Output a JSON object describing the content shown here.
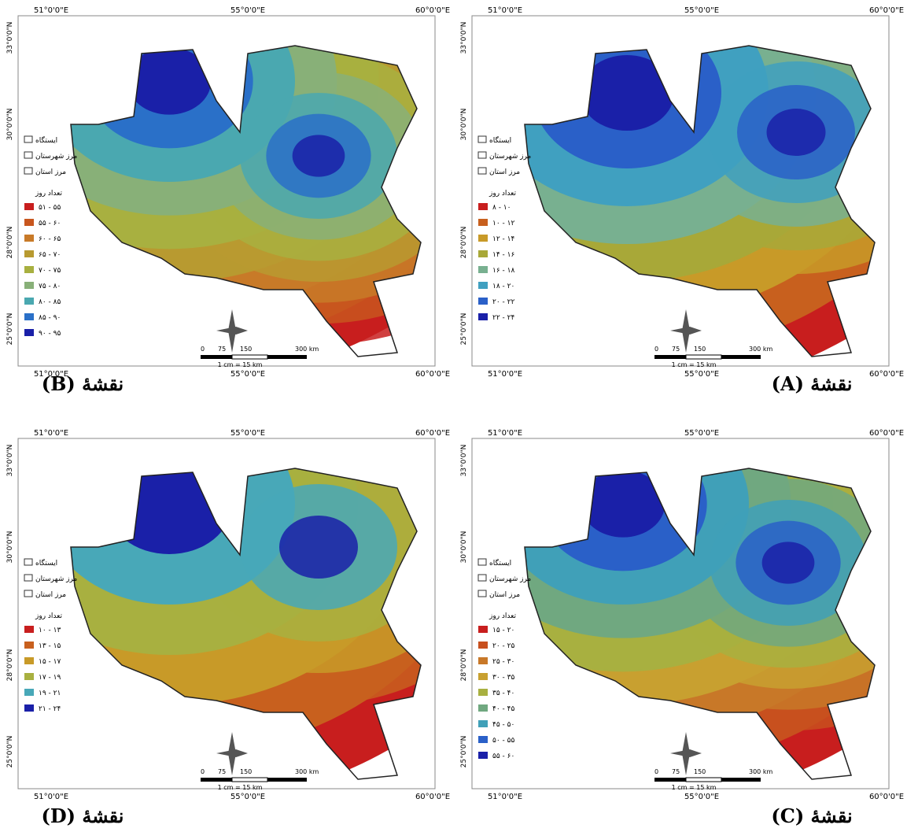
{
  "figure": {
    "maps": [
      {
        "caption": "نقشهٔ (B)",
        "legend_title": "تعداد روز",
        "legend_items": [
          "ایستگاه",
          "مرز شهرستان",
          "مرز استان"
        ],
        "classes": [
          {
            "label": "۵۱ - ۵۵",
            "color": "#c81e1e"
          },
          {
            "label": "۵۵ - ۶۰",
            "color": "#c8561e"
          },
          {
            "label": "۶۰ - ۶۵",
            "color": "#c87a28"
          },
          {
            "label": "۶۵ - ۷۰",
            "color": "#b89a30"
          },
          {
            "label": "۷۰ - ۷۵",
            "color": "#a8b040"
          },
          {
            "label": "۷۵ - ۸۰",
            "color": "#88b078"
          },
          {
            "label": "۸۰ - ۸۵",
            "color": "#4aa8b0"
          },
          {
            "label": "۸۵ - ۹۰",
            "color": "#2a70c8"
          },
          {
            "label": "۹۰ - ۹۵",
            "color": "#1a20a8"
          }
        ]
      },
      {
        "caption": "نقشهٔ (A)",
        "legend_title": "تعداد روز",
        "legend_items": [
          "ایستگاه",
          "مرز شهرستان",
          "مرز استان"
        ],
        "classes": [
          {
            "label": "۸ - ۱۰",
            "color": "#c81e1e"
          },
          {
            "label": "۱۰ - ۱۲",
            "color": "#c8601e"
          },
          {
            "label": "۱۲ - ۱۴",
            "color": "#c89a28"
          },
          {
            "label": "۱۴ - ۱۶",
            "color": "#a8a838"
          },
          {
            "label": "۱۶ - ۱۸",
            "color": "#78b090"
          },
          {
            "label": "۱۸ - ۲۰",
            "color": "#40a0c0"
          },
          {
            "label": "۲۰ - ۲۲",
            "color": "#2a60c8"
          },
          {
            "label": "۲۲ - ۲۴",
            "color": "#1a20a8"
          }
        ]
      },
      {
        "caption": "نقشهٔ (D)",
        "legend_title": "تعداد روز",
        "legend_items": [
          "ایستگاه",
          "مرز شهرستان",
          "مرز استان"
        ],
        "classes": [
          {
            "label": "۱۰ - ۱۳",
            "color": "#c81e1e"
          },
          {
            "label": "۱۳ - ۱۵",
            "color": "#c8601e"
          },
          {
            "label": "۱۵ - ۱۷",
            "color": "#c89a28"
          },
          {
            "label": "۱۷ - ۱۹",
            "color": "#a8b040"
          },
          {
            "label": "۱۹ - ۲۱",
            "color": "#48a8b8"
          },
          {
            "label": "۲۱ - ۲۴",
            "color": "#1a20a8"
          }
        ]
      },
      {
        "caption": "نقشهٔ (C)",
        "legend_title": "تعداد روز",
        "legend_items": [
          "ایستگاه",
          "مرز شهرستان",
          "مرز استان"
        ],
        "classes": [
          {
            "label": "۱۵ - ۲۰",
            "color": "#c81e1e"
          },
          {
            "label": "۲۰ - ۲۵",
            "color": "#c8501e"
          },
          {
            "label": "۲۵ - ۳۰",
            "color": "#c87828"
          },
          {
            "label": "۳۰ - ۳۵",
            "color": "#c8a030"
          },
          {
            "label": "۳۵ - ۴۰",
            "color": "#a8b040"
          },
          {
            "label": "۴۰ - ۴۵",
            "color": "#70a880"
          },
          {
            "label": "۴۵ - ۵۰",
            "color": "#40a0b8"
          },
          {
            "label": "۵۰ - ۵۵",
            "color": "#2a60c8"
          },
          {
            "label": "۵۵ - ۶۰",
            "color": "#1a20a8"
          }
        ]
      }
    ],
    "lon_labels": [
      "51°0'0\"E",
      "55°0'0\"E",
      "60°0'0\"E"
    ],
    "lat_labels": [
      "33°0'0\"N",
      "30°0'0\"N",
      "28°0'0\"N",
      "25°0'0\"N"
    ],
    "scale_ticks": [
      "0",
      "75",
      "150",
      "300 km"
    ],
    "scale_text": "1 cm = 15 km"
  }
}
